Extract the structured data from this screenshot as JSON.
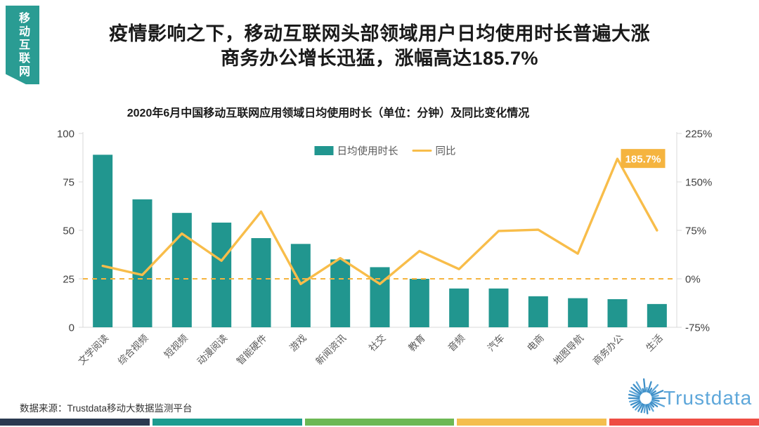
{
  "ribbon": {
    "label": "移动互联网"
  },
  "header": {
    "title_line1": "疫情影响之下，移动互联网头部领域用户日均使用时长普遍大涨",
    "title_line2": "商务办公增长迅猛，涨幅高达185.7%"
  },
  "chart_data": {
    "type": "bar",
    "subtype": "combo bar+line, dual axis",
    "title": "2020年6月中国移动互联网应用领域日均使用时长（单位：分钟）及同比变化情况",
    "categories": [
      "文学阅读",
      "综合视频",
      "短视频",
      "动漫阅读",
      "智能硬件",
      "游戏",
      "新闻资讯",
      "社交",
      "教育",
      "音频",
      "汽车",
      "电商",
      "地图导航",
      "商务办公",
      "生活"
    ],
    "series": [
      {
        "name": "日均使用时长",
        "type": "bar",
        "axis": "left",
        "unit": "分钟",
        "color": "#21968f",
        "values": [
          89,
          66,
          59,
          54,
          46,
          43,
          35,
          31,
          25,
          20,
          20,
          16,
          15,
          14.5,
          12
        ]
      },
      {
        "name": "同比",
        "type": "line",
        "axis": "right",
        "unit": "%",
        "color": "#f8bd4a",
        "values": [
          20,
          6,
          70,
          28,
          104,
          -8,
          32,
          -8,
          43,
          15,
          74,
          76,
          39,
          185.7,
          75
        ]
      }
    ],
    "left_axis": {
      "ticks": [
        0,
        25,
        50,
        75,
        100
      ],
      "range": [
        0,
        100
      ]
    },
    "right_axis": {
      "ticks": [
        -75,
        0,
        75,
        150,
        225
      ],
      "range": [
        -75,
        225
      ],
      "suffix": "%"
    },
    "zero_line": {
      "right_axis_value": 0,
      "style": "dashed",
      "color": "#f5b43f"
    },
    "annotation": {
      "text": "185.7%",
      "category": "商务办公",
      "bg": "#f5b43f",
      "text_color": "#ffffff"
    },
    "legend": [
      "日均使用时长",
      "同比"
    ],
    "legend_position": "top-center",
    "grid": false
  },
  "footer": {
    "source": "数据来源：Trustdata移动大数据监测平台",
    "logo_text": "Trustdata"
  },
  "colors": {
    "ribbon_bg": "#2a9c93",
    "axis_line": "#d9d9d9",
    "axis_text": "#404040",
    "category_text": "#595959",
    "logo_blue": "#3e8fc7",
    "bottom_bar": [
      "#2a3950",
      "#1d9c90",
      "#6cb854",
      "#f4be4e",
      "#ee4d44"
    ]
  }
}
